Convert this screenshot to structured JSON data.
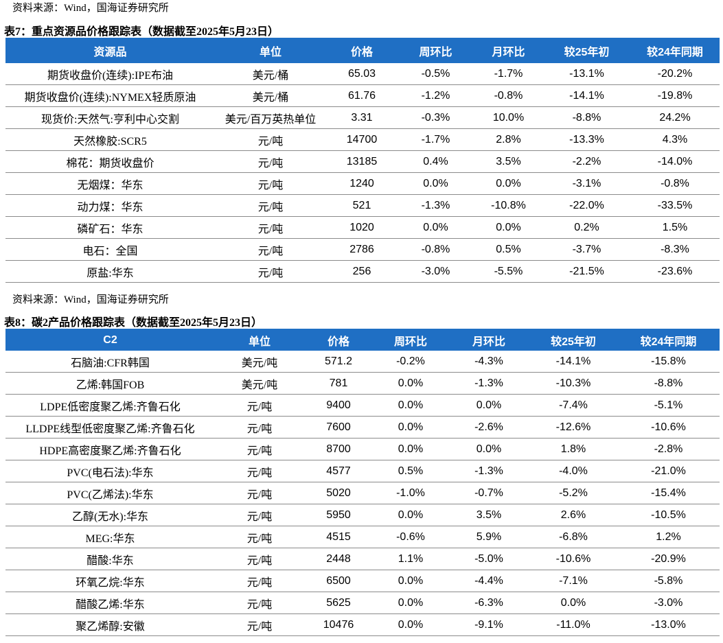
{
  "source_top": "资料来源：Wind，国海证券研究所",
  "table7": {
    "title": "表7：重点资源品价格跟踪表（数据截至2025年5月23日）",
    "headers": [
      "资源品",
      "单位",
      "价格",
      "周环比",
      "月环比",
      "较25年初",
      "较24年同期"
    ],
    "rows": [
      [
        "期货收盘价(连续):IPE布油",
        "美元/桶",
        "65.03",
        "-0.5%",
        "-1.7%",
        "-13.1%",
        "-20.2%"
      ],
      [
        "期货收盘价(连续):NYMEX轻质原油",
        "美元/桶",
        "61.76",
        "-1.2%",
        "-0.8%",
        "-14.1%",
        "-19.8%"
      ],
      [
        "现货价:天然气:亨利中心交割",
        "美元/百万英热单位",
        "3.31",
        "-0.3%",
        "10.0%",
        "-8.8%",
        "24.2%"
      ],
      [
        "天然橡胶:SCR5",
        "元/吨",
        "14700",
        "-1.7%",
        "2.8%",
        "-13.3%",
        "4.3%"
      ],
      [
        "棉花：期货收盘价",
        "元/吨",
        "13185",
        "0.4%",
        "3.5%",
        "-2.2%",
        "-14.0%"
      ],
      [
        "无烟煤：华东",
        "元/吨",
        "1240",
        "0.0%",
        "0.0%",
        "-3.1%",
        "-0.8%"
      ],
      [
        "动力煤：华东",
        "元/吨",
        "521",
        "-1.3%",
        "-10.8%",
        "-22.0%",
        "-33.5%"
      ],
      [
        "磷矿石：华东",
        "元/吨",
        "1020",
        "0.0%",
        "0.0%",
        "0.2%",
        "1.5%"
      ],
      [
        "电石：全国",
        "元/吨",
        "2786",
        "-0.8%",
        "0.5%",
        "-3.7%",
        "-8.3%"
      ],
      [
        "原盐:华东",
        "元/吨",
        "256",
        "-3.0%",
        "-5.5%",
        "-21.5%",
        "-23.6%"
      ]
    ]
  },
  "source_mid": "资料来源：Wind，国海证券研究所",
  "table8": {
    "title": "表8：碳2产品价格跟踪表（数据截至2025年5月23日）",
    "headers": [
      "C2",
      "单位",
      "价格",
      "周环比",
      "月环比",
      "较25年初",
      "较24年同期"
    ],
    "rows": [
      [
        "石脑油:CFR韩国",
        "美元/吨",
        "571.2",
        "-0.2%",
        "-4.3%",
        "-14.1%",
        "-15.8%"
      ],
      [
        "乙烯:韩国FOB",
        "美元/吨",
        "781",
        "0.0%",
        "-1.3%",
        "-10.3%",
        "-8.8%"
      ],
      [
        "LDPE低密度聚乙烯:齐鲁石化",
        "元/吨",
        "9400",
        "0.0%",
        "0.0%",
        "-7.4%",
        "-5.1%"
      ],
      [
        "LLDPE线型低密度聚乙烯:齐鲁石化",
        "元/吨",
        "7600",
        "0.0%",
        "-2.6%",
        "-12.6%",
        "-10.6%"
      ],
      [
        "HDPE高密度聚乙烯:齐鲁石化",
        "元/吨",
        "8700",
        "0.0%",
        "0.0%",
        "1.8%",
        "-2.8%"
      ],
      [
        "PVC(电石法):华东",
        "元/吨",
        "4577",
        "0.5%",
        "-1.3%",
        "-4.0%",
        "-21.0%"
      ],
      [
        "PVC(乙烯法):华东",
        "元/吨",
        "5020",
        "-1.0%",
        "-0.7%",
        "-5.2%",
        "-15.4%"
      ],
      [
        "乙醇(无水):华东",
        "元/吨",
        "5950",
        "0.0%",
        "3.5%",
        "2.6%",
        "-10.5%"
      ],
      [
        "MEG:华东",
        "元/吨",
        "4515",
        "-0.6%",
        "5.9%",
        "-6.8%",
        "1.2%"
      ],
      [
        "醋酸:华东",
        "元/吨",
        "2448",
        "1.1%",
        "-5.0%",
        "-10.6%",
        "-20.9%"
      ],
      [
        "环氧乙烷:华东",
        "元/吨",
        "6500",
        "0.0%",
        "-4.4%",
        "-7.1%",
        "-5.8%"
      ],
      [
        "醋酸乙烯:华东",
        "元/吨",
        "5625",
        "0.0%",
        "-6.3%",
        "0.0%",
        "-3.0%"
      ],
      [
        "聚乙烯醇:安徽",
        "元/吨",
        "10476",
        "0.0%",
        "-9.1%",
        "-11.0%",
        "-13.0%"
      ]
    ]
  }
}
